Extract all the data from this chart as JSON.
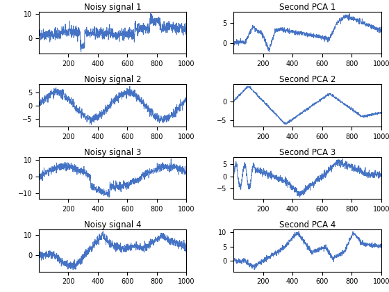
{
  "titles_left": [
    "Noisy signal 1",
    "Noisy signal 2",
    "Noisy signal 3",
    "Noisy signal 4"
  ],
  "titles_right": [
    "Second PCA 1",
    "Second PCA 2",
    "Second PCA 3",
    "Second PCA 4"
  ],
  "n_samples": 1000,
  "line_color": "#4472C4",
  "line_width": 0.7,
  "tick_labelsize": 7,
  "title_fontsize": 8.5,
  "figsize": [
    5.6,
    4.2
  ],
  "dpi": 100
}
